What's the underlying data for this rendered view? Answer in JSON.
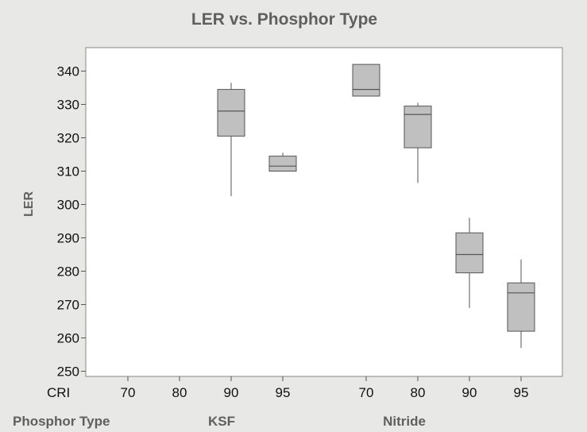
{
  "chart_data": {
    "type": "box",
    "title": "LER vs. Phosphor Type",
    "ylabel": "LER",
    "ylim": [
      248,
      349
    ],
    "yticks": [
      250,
      260,
      270,
      280,
      290,
      300,
      310,
      320,
      330,
      340
    ],
    "row_labels": {
      "cri": "CRI",
      "phosphor_type": "Phosphor Type"
    },
    "groups": [
      {
        "name": "KSF",
        "categories": [
          "70",
          "80",
          "90",
          "95"
        ]
      },
      {
        "name": "Nitride",
        "categories": [
          "70",
          "80",
          "90",
          "95"
        ]
      }
    ],
    "boxes": [
      {
        "group": "KSF",
        "cri": "90",
        "min": 302.5,
        "q1": 320.5,
        "median": 328,
        "q3": 334.5,
        "max": 336.5
      },
      {
        "group": "KSF",
        "cri": "95",
        "min": 310,
        "q1": 310,
        "median": 311.5,
        "q3": 314.5,
        "max": 315.5
      },
      {
        "group": "Nitride",
        "cri": "70",
        "min": 332.5,
        "q1": 332.5,
        "median": 334.5,
        "q3": 342,
        "max": 342
      },
      {
        "group": "Nitride",
        "cri": "80",
        "min": 306.5,
        "q1": 317,
        "median": 327,
        "q3": 329.5,
        "max": 330.5
      },
      {
        "group": "Nitride",
        "cri": "90",
        "min": 269,
        "q1": 279.5,
        "median": 285,
        "q3": 291.5,
        "max": 296
      },
      {
        "group": "Nitride",
        "cri": "95",
        "min": 257,
        "q1": 262,
        "median": 273.5,
        "q3": 276.5,
        "max": 283.5
      }
    ],
    "colors": {
      "box_fill": "#c0c0c0",
      "box_stroke": "#555555",
      "plot_bg": "#ffffff",
      "page_bg": "#e8e8e6"
    },
    "grid": false
  }
}
